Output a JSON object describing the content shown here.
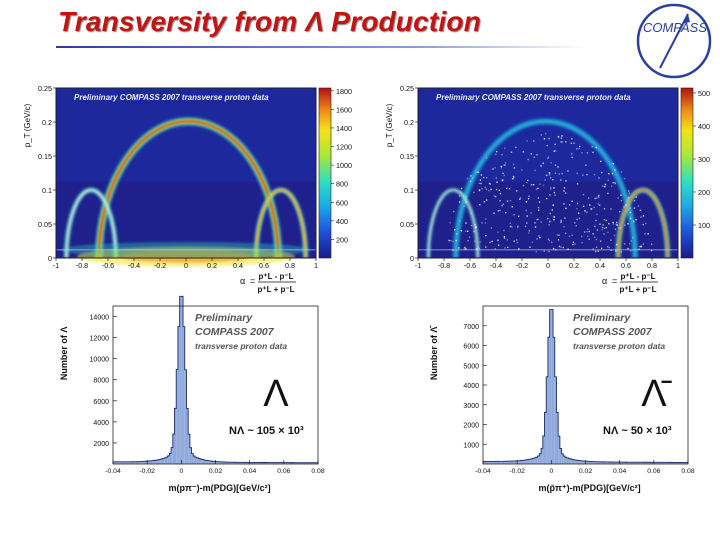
{
  "slide": {
    "title": "Transversity from Λ Production",
    "logo_text": "COMPASS"
  },
  "chart_data": [
    {
      "type": "heatmap",
      "title": "Preliminary COMPASS 2007 transverse proton data",
      "ylabel": "p_T (GeV/c)",
      "xlabel": "α",
      "formula_num": "p⁺L - p⁻L",
      "formula_den": "p⁺L + p⁻L",
      "xlim": [
        -1,
        1
      ],
      "ylim": [
        0,
        0.25
      ],
      "x_ticks": [
        "-1",
        "-0.8",
        "-0.6",
        "-0.4",
        "-0.2",
        "0",
        "0.2",
        "0.4",
        "0.6",
        "0.8",
        "1"
      ],
      "y_ticks": [
        "0",
        "0.05",
        "0.1",
        "0.15",
        "0.2",
        "0.25"
      ],
      "colorbar_ticks": [
        "200",
        "400",
        "600",
        "800",
        "1000",
        "1200",
        "1400",
        "1600",
        "1800"
      ]
    },
    {
      "type": "heatmap",
      "title": "Preliminary COMPASS 2007 transverse proton data",
      "ylabel": "p_T (GeV/c)",
      "xlabel": "α",
      "formula_num": "p⁺L - p⁻L",
      "formula_den": "p⁺L + p⁻L",
      "xlim": [
        -1,
        1
      ],
      "ylim": [
        0,
        0.25
      ],
      "x_ticks": [
        "-1",
        "-0.8",
        "-0.6",
        "-0.4",
        "-0.2",
        "0",
        "0.2",
        "0.4",
        "0.6",
        "0.8",
        "1"
      ],
      "y_ticks": [
        "0",
        "0.05",
        "0.1",
        "0.15",
        "0.2",
        "0.25"
      ],
      "colorbar_ticks": [
        "100",
        "200",
        "300",
        "400",
        "500"
      ]
    },
    {
      "type": "bar",
      "histogram": true,
      "particle": "Λ",
      "ylabel": "Number of Λ",
      "xlabel": "m(pπ⁻)-m(PDG)[GeV/c²]",
      "legend": [
        "Preliminary",
        "COMPASS 2007",
        "transverse proton data"
      ],
      "count_label": "NΛ ~ 105 × 10³",
      "xlim": [
        -0.04,
        0.08
      ],
      "ylim": [
        0,
        15000
      ],
      "peak": {
        "x": 0,
        "y": 14500,
        "sigma": 0.0022,
        "background": 200
      },
      "x_ticks": [
        "-0.04",
        "-0.02",
        "0",
        "0.02",
        "0.04",
        "0.06",
        "0.08"
      ],
      "y_ticks": [
        "2000",
        "4000",
        "6000",
        "8000",
        "10000",
        "12000",
        "14000"
      ]
    },
    {
      "type": "bar",
      "histogram": true,
      "particle": "Λ̄",
      "ylabel": "Number of Λ̄",
      "xlabel": "m(p̄π⁺)-m(PDG)[GeV/c²]",
      "legend": [
        "Preliminary",
        "COMPASS 2007",
        "transverse proton data"
      ],
      "count_label": "NΛ ~ 50 × 10³",
      "xlim": [
        -0.04,
        0.08
      ],
      "ylim": [
        0,
        8000
      ],
      "peak": {
        "x": 0,
        "y": 7100,
        "sigma": 0.0022,
        "background": 130
      },
      "x_ticks": [
        "-0.04",
        "-0.02",
        "0",
        "0.02",
        "0.04",
        "0.06",
        "0.08"
      ],
      "y_ticks": [
        "1000",
        "2000",
        "3000",
        "4000",
        "5000",
        "6000",
        "7000"
      ]
    }
  ]
}
